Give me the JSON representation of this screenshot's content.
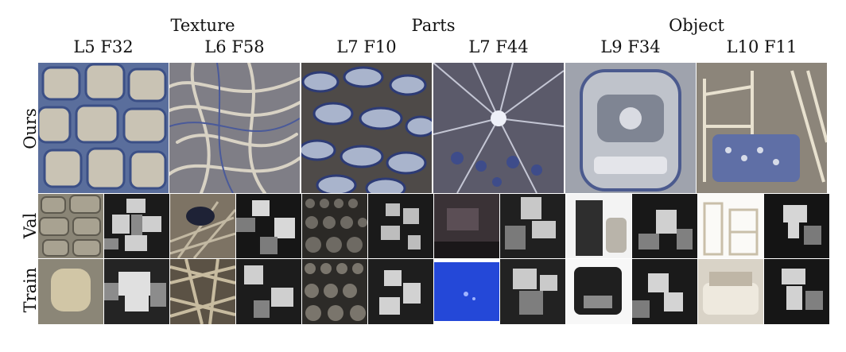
{
  "figure": {
    "groups": [
      {
        "label": "Texture"
      },
      {
        "label": "Parts"
      },
      {
        "label": "Object"
      }
    ],
    "columns": [
      {
        "label": "L5 F32",
        "group": "Texture"
      },
      {
        "label": "L6 F58",
        "group": "Texture"
      },
      {
        "label": "L7 F10",
        "group": "Parts"
      },
      {
        "label": "L7 F44",
        "group": "Parts"
      },
      {
        "label": "L9 F34",
        "group": "Object"
      },
      {
        "label": "L10 F11",
        "group": "Object"
      }
    ],
    "rows": [
      {
        "label": "Ours"
      },
      {
        "label": "Val"
      },
      {
        "label": "Train"
      }
    ]
  }
}
